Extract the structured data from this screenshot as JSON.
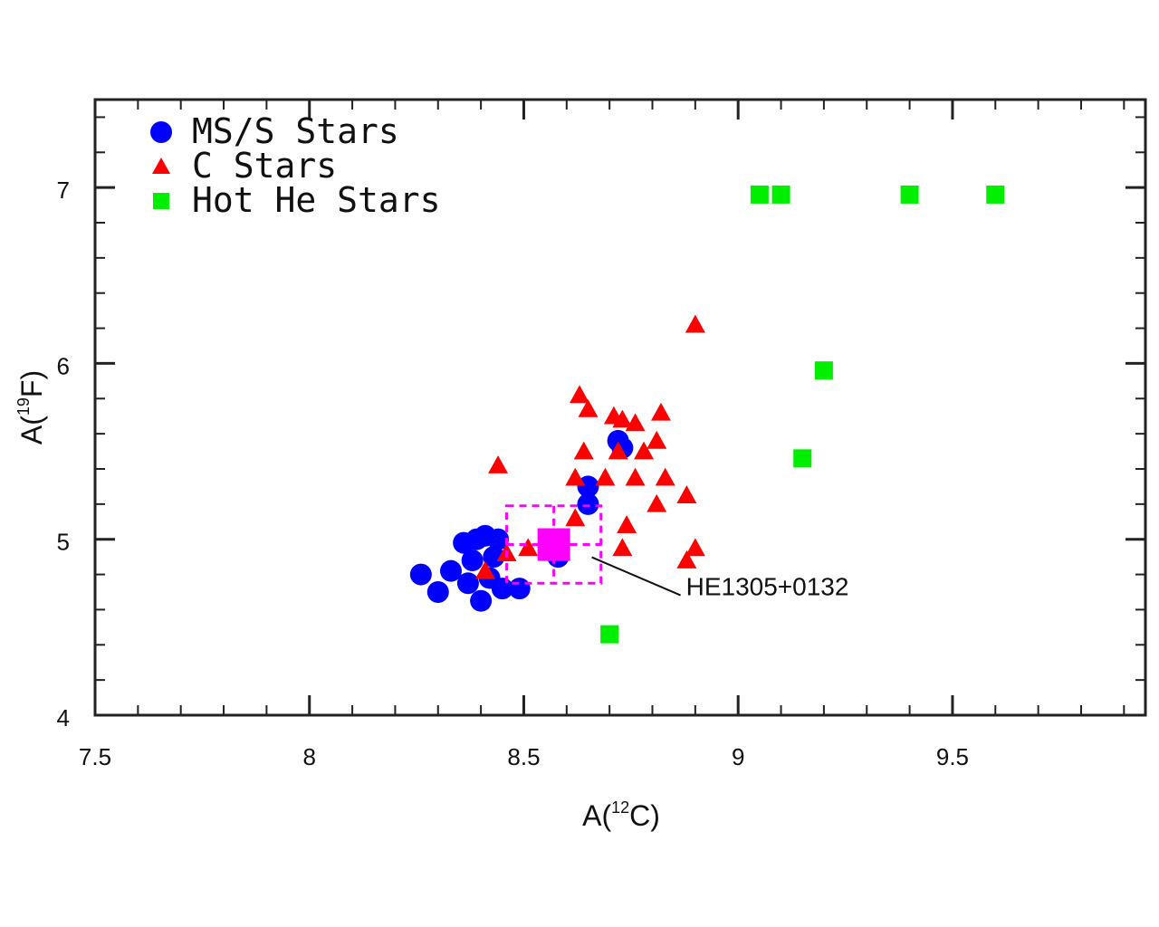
{
  "chart_data": {
    "type": "scatter",
    "title": "",
    "xlabel": {
      "prefix": "A(",
      "sup": "12",
      "main": "C",
      "suffix": ")"
    },
    "ylabel": {
      "prefix": "A(",
      "sup": "19",
      "main": "F",
      "suffix": ")"
    },
    "xlim": [
      7.5,
      9.95
    ],
    "ylim": [
      4,
      7.5
    ],
    "xticks": [
      7.5,
      8,
      8.5,
      9,
      9.5
    ],
    "xtick_labels": [
      "7.5",
      "8",
      "8.5",
      "9",
      "9.5"
    ],
    "yticks": [
      4,
      5,
      6,
      7
    ],
    "ytick_labels": [
      "4",
      "5",
      "6",
      "7"
    ],
    "grid": false,
    "legend_position": "top-left",
    "series": [
      {
        "name": "MS/S Stars",
        "marker": "circle",
        "color": "#0000ff",
        "points": [
          [
            8.26,
            4.8
          ],
          [
            8.3,
            4.7
          ],
          [
            8.33,
            4.82
          ],
          [
            8.36,
            4.98
          ],
          [
            8.37,
            4.75
          ],
          [
            8.38,
            4.88
          ],
          [
            8.39,
            5.0
          ],
          [
            8.4,
            4.65
          ],
          [
            8.41,
            5.02
          ],
          [
            8.42,
            4.78
          ],
          [
            8.43,
            4.9
          ],
          [
            8.44,
            5.0
          ],
          [
            8.45,
            4.72
          ],
          [
            8.49,
            4.72
          ],
          [
            8.58,
            4.9
          ],
          [
            8.65,
            5.2
          ],
          [
            8.65,
            5.3
          ],
          [
            8.72,
            5.56
          ],
          [
            8.73,
            5.52
          ]
        ]
      },
      {
        "name": "C Stars",
        "marker": "triangle",
        "color": "#ff0000",
        "points": [
          [
            8.41,
            4.82
          ],
          [
            8.44,
            5.42
          ],
          [
            8.46,
            4.92
          ],
          [
            8.51,
            4.95
          ],
          [
            8.62,
            5.12
          ],
          [
            8.62,
            5.35
          ],
          [
            8.63,
            5.82
          ],
          [
            8.64,
            5.5
          ],
          [
            8.65,
            5.74
          ],
          [
            8.69,
            5.35
          ],
          [
            8.71,
            5.7
          ],
          [
            8.72,
            5.5
          ],
          [
            8.73,
            5.68
          ],
          [
            8.73,
            4.95
          ],
          [
            8.74,
            5.08
          ],
          [
            8.76,
            5.66
          ],
          [
            8.76,
            5.35
          ],
          [
            8.78,
            5.5
          ],
          [
            8.81,
            5.2
          ],
          [
            8.81,
            5.56
          ],
          [
            8.82,
            5.72
          ],
          [
            8.83,
            5.35
          ],
          [
            8.88,
            5.25
          ],
          [
            8.88,
            4.88
          ],
          [
            8.9,
            4.95
          ],
          [
            8.9,
            6.22
          ]
        ]
      },
      {
        "name": "Hot He Stars",
        "marker": "square",
        "color": "#00ee00",
        "points": [
          [
            9.05,
            6.96
          ],
          [
            9.1,
            6.96
          ],
          [
            9.4,
            6.96
          ],
          [
            9.6,
            6.96
          ],
          [
            9.2,
            5.96
          ],
          [
            9.15,
            5.46
          ],
          [
            8.7,
            4.46
          ]
        ]
      }
    ],
    "highlight": {
      "label": "HE1305+0132",
      "x": 8.57,
      "y": 4.97,
      "xerr": 0.11,
      "yerr": 0.22,
      "color": "#ff00ff",
      "marker": "square"
    }
  }
}
